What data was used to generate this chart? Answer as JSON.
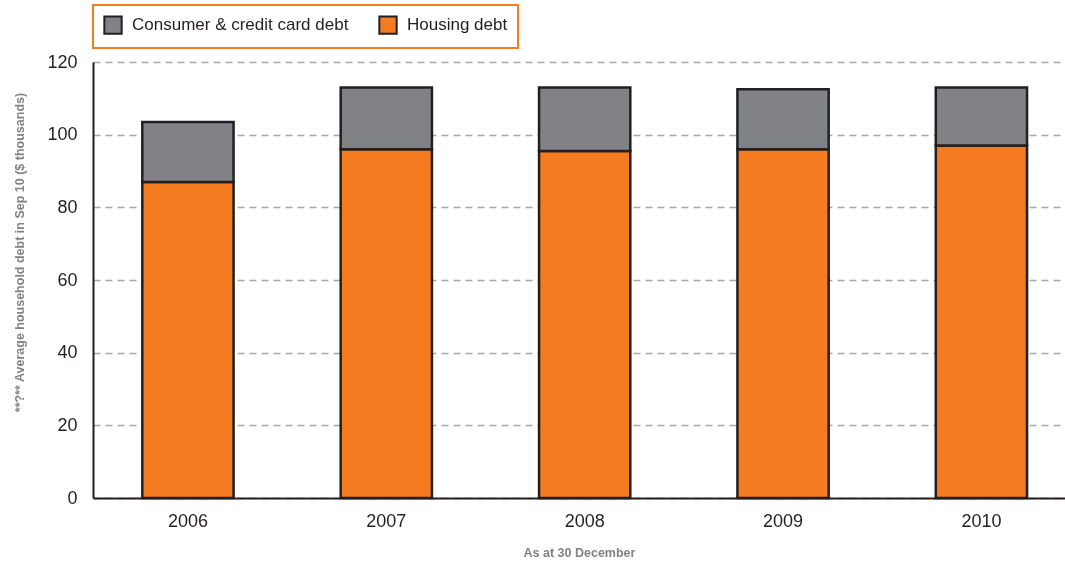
{
  "chart_data": {
    "type": "bar",
    "stacked": true,
    "xlabel": "As at 30 December",
    "ylabel": "**?** Average household debt in Sep 10 ($ thousands)",
    "categories": [
      "2006",
      "2007",
      "2008",
      "2009",
      "2010"
    ],
    "series": [
      {
        "name": "Housing debt",
        "color": "#f47b20",
        "values": [
          87,
          96,
          95.5,
          96,
          97
        ]
      },
      {
        "name": "Consumer & credit card debt",
        "color": "#808285",
        "values": [
          16.5,
          17,
          17.5,
          16.5,
          16
        ]
      }
    ],
    "ylim": [
      0,
      120
    ],
    "yticks": [
      0,
      20,
      40,
      60,
      80,
      100,
      120
    ],
    "grid": "y",
    "legend": "top"
  }
}
